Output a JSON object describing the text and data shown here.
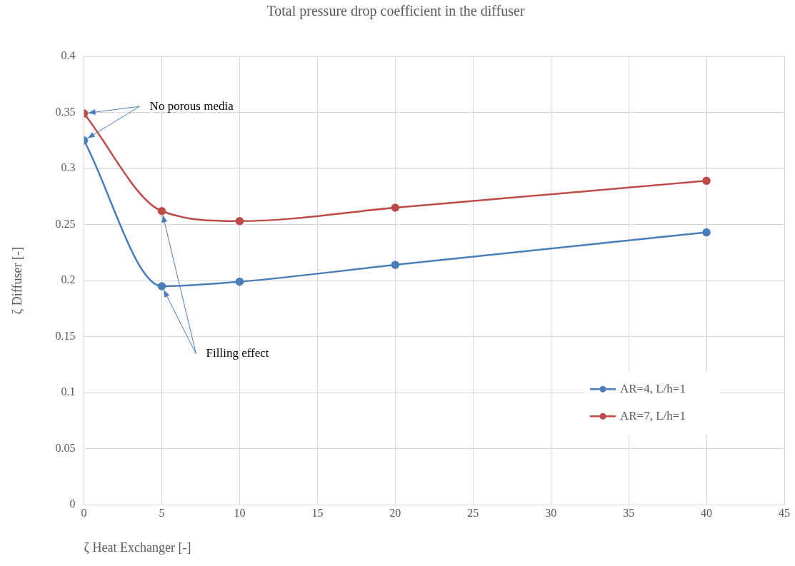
{
  "chart_data": {
    "type": "line",
    "title": "Total pressure drop coefficient in the diffuser",
    "xlabel": "ζ Heat Exchanger [-]",
    "ylabel": "ζ Diffuser [-]",
    "x": [
      0,
      5,
      10,
      20,
      40
    ],
    "series": [
      {
        "name": "AR=4, L/h=1",
        "color": "#4a7ebb",
        "values": [
          0.325,
          0.195,
          0.199,
          0.214,
          0.243
        ]
      },
      {
        "name": "AR=7, L/h=1",
        "color": "#be4b48",
        "values": [
          0.349,
          0.262,
          0.253,
          0.265,
          0.289
        ]
      }
    ],
    "xlim": [
      0,
      45
    ],
    "xticks": [
      0,
      5,
      10,
      15,
      20,
      25,
      30,
      35,
      40,
      45
    ],
    "ylim": [
      0,
      0.4
    ],
    "yticks": [
      0,
      0.05,
      0.1,
      0.15,
      0.2,
      0.25,
      0.3,
      0.35,
      0.4
    ],
    "annotations": [
      {
        "text": "No porous media",
        "x": 0,
        "y": 0.349
      },
      {
        "text": "Filling effect",
        "x": 5,
        "y": 0.195
      }
    ],
    "grid": true,
    "legend": "bottom right",
    "marker": "circle",
    "line_style": "solid"
  }
}
